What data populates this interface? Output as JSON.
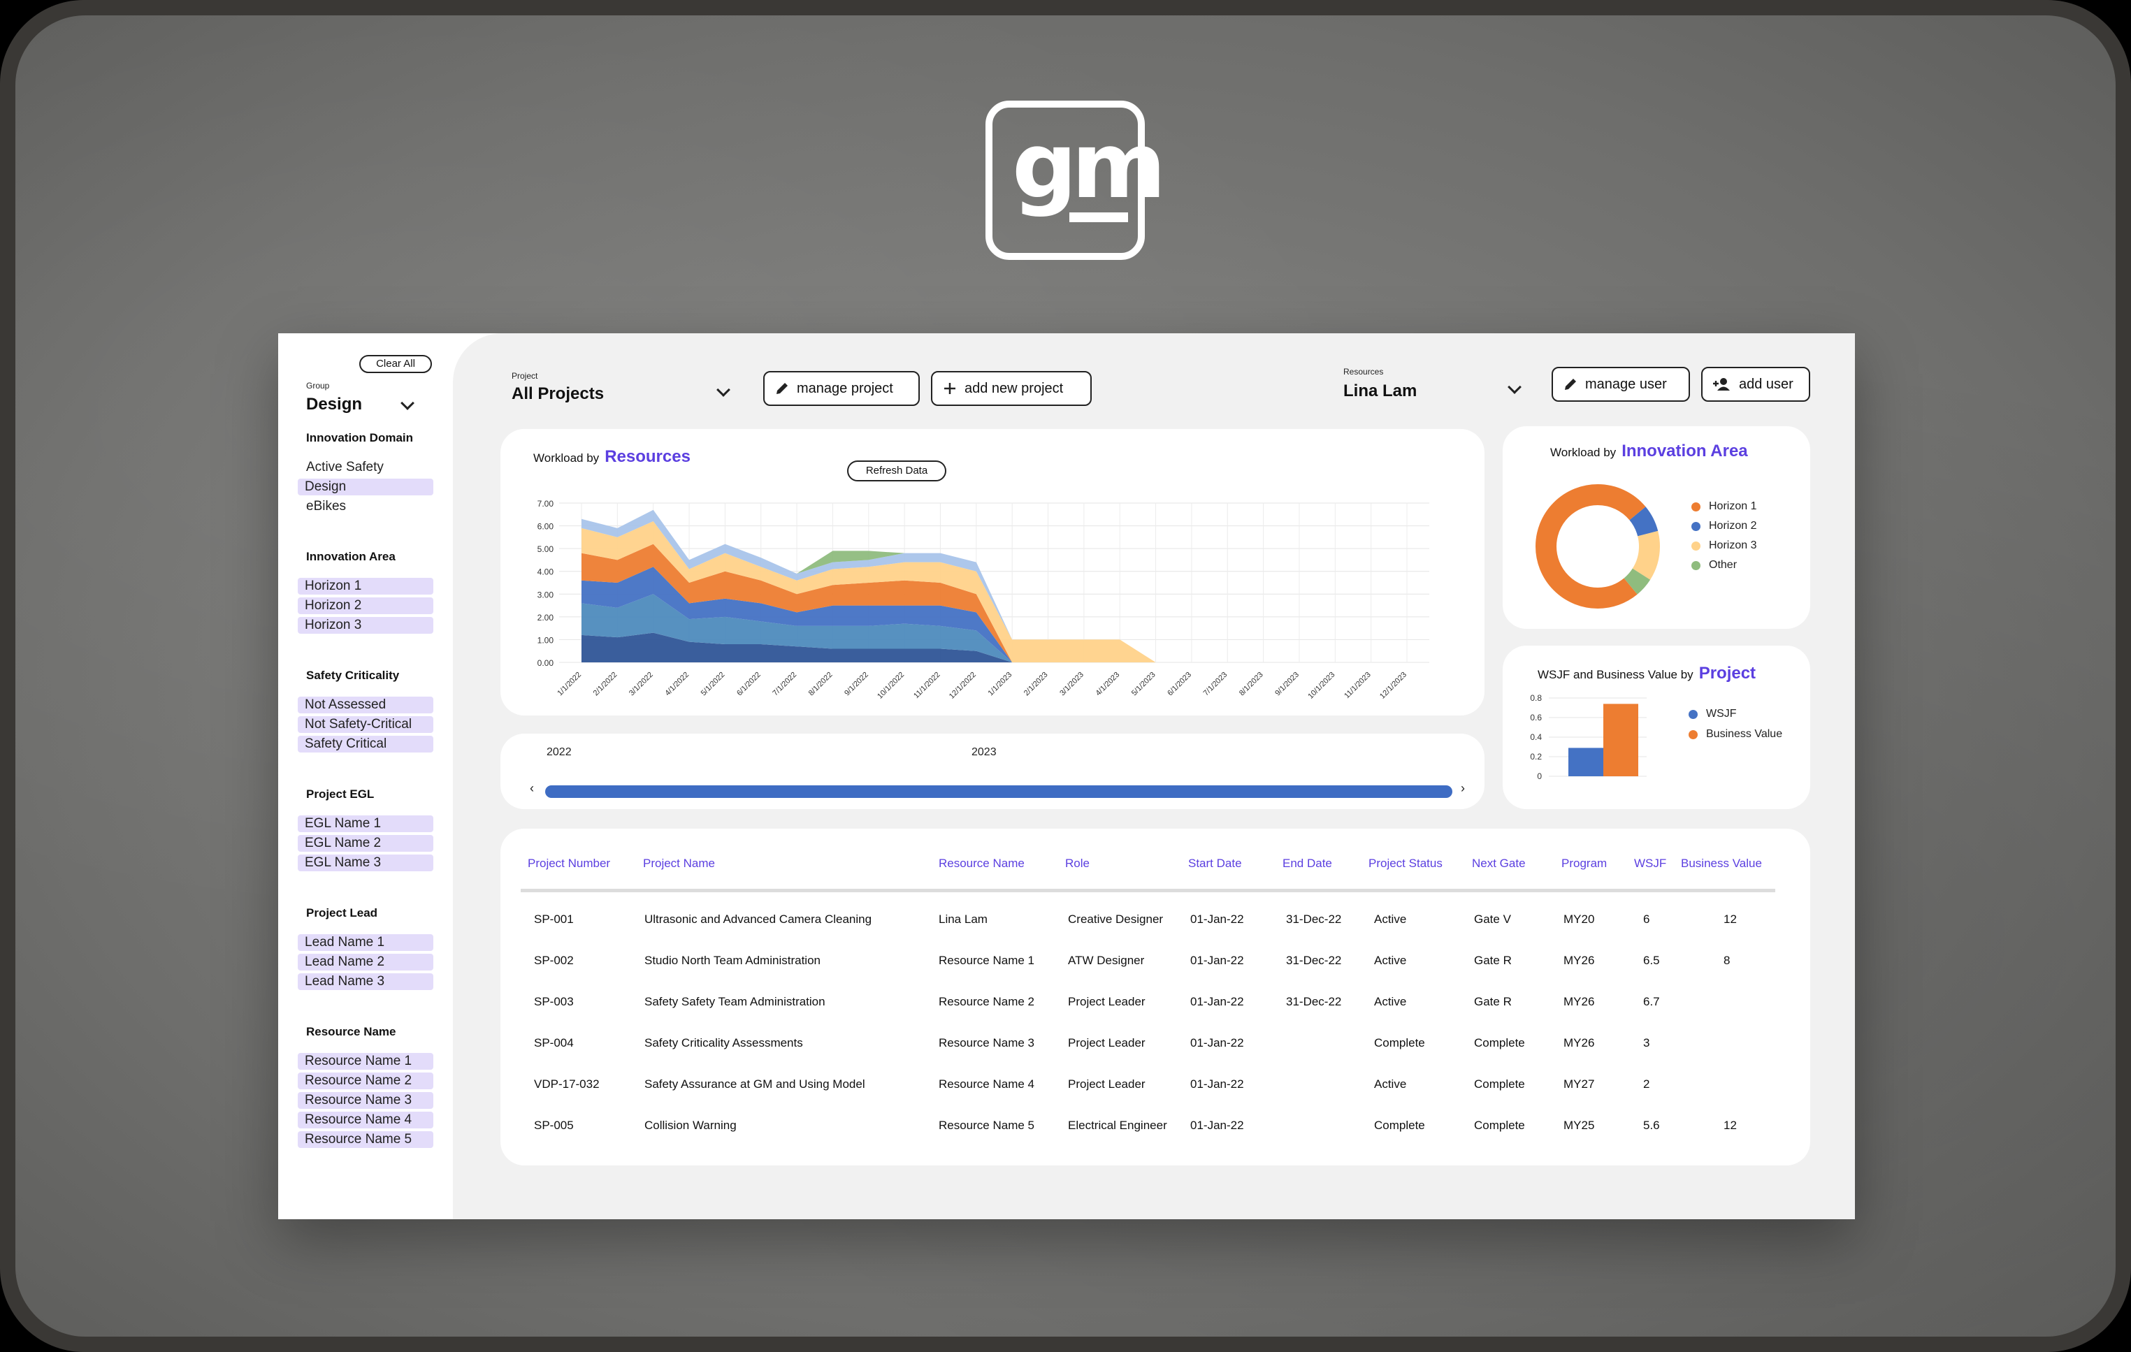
{
  "brand": {
    "logo_text": "gm"
  },
  "sidebar": {
    "clear_all": "Clear All",
    "group_label": "Group",
    "group_value": "Design",
    "sections": [
      {
        "title": "Innovation Domain",
        "items": [
          {
            "label": "Active Safety",
            "selected": false
          },
          {
            "label": "Design",
            "selected": true
          },
          {
            "label": "eBikes",
            "selected": false
          }
        ]
      },
      {
        "title": "Innovation Area",
        "items": [
          {
            "label": "Horizon 1",
            "selected": true
          },
          {
            "label": "Horizon 2",
            "selected": true
          },
          {
            "label": "Horizon 3",
            "selected": true
          }
        ]
      },
      {
        "title": "Safety Criticality",
        "items": [
          {
            "label": "Not Assessed",
            "selected": true
          },
          {
            "label": "Not Safety-Critical",
            "selected": true
          },
          {
            "label": "Safety Critical",
            "selected": true
          }
        ]
      },
      {
        "title": "Project EGL",
        "items": [
          {
            "label": "EGL Name 1",
            "selected": true
          },
          {
            "label": "EGL Name 2",
            "selected": true
          },
          {
            "label": "EGL Name 3",
            "selected": true
          }
        ]
      },
      {
        "title": "Project Lead",
        "items": [
          {
            "label": "Lead Name 1",
            "selected": true
          },
          {
            "label": "Lead Name 2",
            "selected": true
          },
          {
            "label": "Lead Name 3",
            "selected": true
          }
        ]
      },
      {
        "title": "Resource Name",
        "items": [
          {
            "label": "Resource Name 1",
            "selected": true
          },
          {
            "label": "Resource Name 2",
            "selected": true
          },
          {
            "label": "Resource Name 3",
            "selected": true
          },
          {
            "label": "Resource Name 4",
            "selected": true
          },
          {
            "label": "Resource Name 5",
            "selected": true
          }
        ]
      }
    ]
  },
  "header": {
    "project_label": "Project",
    "project_value": "All Projects",
    "manage_project": "manage project",
    "add_new_project": "add new project",
    "resources_label": "Resources",
    "resources_value": "Lina Lam",
    "manage_user": "manage user",
    "add_user": "add user"
  },
  "workload": {
    "title_prefix": "Workload by",
    "title_accent": "Resources",
    "refresh": "Refresh Data"
  },
  "timeline": {
    "years": [
      "2022",
      "2023"
    ],
    "left_arrow": "‹",
    "right_arrow": "›"
  },
  "innovation": {
    "title_prefix": "Workload by",
    "title_accent": "Innovation Area"
  },
  "wsjf": {
    "title_prefix": "WSJF and Business Value by",
    "title_accent": "Project"
  },
  "colors": {
    "accent": "#5b3fe0",
    "orange": "#ed7d31",
    "blue": "#4472c4",
    "light_orange": "#ffd28a",
    "green": "#8fbc7e",
    "sky": "#a9c4ea",
    "teal": "#4e8bbd"
  },
  "table": {
    "headers": [
      "Project Number",
      "Project Name",
      "Resource Name",
      "Role",
      "Start Date",
      "End Date",
      "Project Status",
      "Next Gate",
      "Program",
      "WSJF",
      "Business Value"
    ],
    "rows": [
      [
        "SP-001",
        "Ultrasonic and Advanced Camera Cleaning",
        "Lina Lam",
        "Creative Designer",
        "01-Jan-22",
        "31-Dec-22",
        "Active",
        "Gate V",
        "MY20",
        "6",
        "12"
      ],
      [
        "SP-002",
        "Studio North Team Administration",
        "Resource Name 1",
        "ATW Designer",
        "01-Jan-22",
        "31-Dec-22",
        "Active",
        "Gate R",
        "MY26",
        "6.5",
        "8"
      ],
      [
        "SP-003",
        "Safety Safety Team Administration",
        "Resource Name 2",
        "Project Leader",
        "01-Jan-22",
        "31-Dec-22",
        "Active",
        "Gate R",
        "MY26",
        "6.7",
        ""
      ],
      [
        "SP-004",
        "Safety Criticality Assessments",
        "Resource Name 3",
        "Project Leader",
        "01-Jan-22",
        "",
        "Complete",
        "Complete",
        "MY26",
        "3",
        ""
      ],
      [
        "VDP-17-032",
        "Safety Assurance at GM and Using Model",
        "Resource Name 4",
        "Project Leader",
        "01-Jan-22",
        "",
        "Active",
        "Complete",
        "MY27",
        "2",
        ""
      ],
      [
        "SP-005",
        "Collision Warning",
        "Resource Name 5",
        "Electrical Engineer",
        "01-Jan-22",
        "",
        "Complete",
        "Complete",
        "MY25",
        "5.6",
        "12"
      ]
    ]
  },
  "chart_data": [
    {
      "type": "area",
      "title": "Workload by Resources",
      "x": [
        "1/1/2022",
        "2/1/2022",
        "3/1/2022",
        "4/1/2022",
        "5/1/2022",
        "6/1/2022",
        "7/1/2022",
        "8/1/2022",
        "9/1/2022",
        "10/1/2022",
        "11/1/2022",
        "12/1/2022",
        "1/1/2023",
        "2/1/2023",
        "3/1/2023",
        "4/1/2023",
        "5/1/2023",
        "6/1/2023",
        "7/1/2023",
        "8/1/2023",
        "9/1/2023",
        "10/1/2023",
        "11/1/2023",
        "12/1/2023"
      ],
      "ylim": [
        0,
        7
      ],
      "yticks": [
        "0.00",
        "1.00",
        "2.00",
        "3.00",
        "4.00",
        "5.00",
        "6.00",
        "7.00"
      ],
      "grid": true,
      "stacked": true,
      "series": [
        {
          "color": "#2f5597",
          "values": [
            1.2,
            1.1,
            1.3,
            0.9,
            0.8,
            0.8,
            0.7,
            0.6,
            0.6,
            0.6,
            0.6,
            0.5,
            0,
            0,
            0,
            0,
            0,
            0,
            0,
            0,
            0,
            0,
            0,
            0
          ]
        },
        {
          "color": "#4e8bbd",
          "values": [
            1.4,
            1.3,
            1.7,
            1.0,
            1.2,
            1.0,
            0.9,
            1.0,
            1.0,
            1.1,
            1.0,
            0.9,
            0,
            0,
            0,
            0,
            0,
            0,
            0,
            0,
            0,
            0,
            0,
            0
          ]
        },
        {
          "color": "#4472c4",
          "values": [
            1.0,
            1.1,
            1.2,
            0.7,
            0.8,
            0.8,
            0.6,
            0.9,
            0.9,
            0.8,
            0.9,
            0.8,
            0,
            0,
            0,
            0,
            0,
            0,
            0,
            0,
            0,
            0,
            0,
            0
          ]
        },
        {
          "color": "#ed7d31",
          "values": [
            1.2,
            1.0,
            1.0,
            0.9,
            1.2,
            1.0,
            0.8,
            0.9,
            1.0,
            1.1,
            1.0,
            0.8,
            0,
            0,
            0,
            0,
            0,
            0,
            0,
            0,
            0,
            0,
            0,
            0
          ]
        },
        {
          "color": "#ffd28a",
          "values": [
            1.1,
            1.0,
            1.0,
            0.6,
            0.8,
            0.6,
            0.6,
            0.7,
            0.7,
            0.8,
            0.9,
            1.0,
            1.0,
            1.0,
            1.0,
            1.0,
            0,
            0,
            0,
            0,
            0,
            0,
            0,
            0
          ]
        },
        {
          "color": "#a9c4ea",
          "values": [
            0.4,
            0.4,
            0.5,
            0.4,
            0.4,
            0.4,
            0.3,
            0.3,
            0.3,
            0.4,
            0.4,
            0.4,
            0,
            0,
            0,
            0,
            0,
            0,
            0,
            0,
            0,
            0,
            0,
            0
          ]
        },
        {
          "color": "#8fbc7e",
          "values": [
            0,
            0,
            0,
            0,
            0,
            0,
            0,
            0.5,
            0.4,
            0,
            0,
            0,
            0,
            0,
            0,
            0,
            0,
            0,
            0,
            0,
            0,
            0,
            0,
            0
          ]
        }
      ]
    },
    {
      "type": "pie",
      "title": "Workload by Innovation Area",
      "donut": true,
      "legend": "right",
      "labels": [
        "Horizon 1",
        "Horizon 2",
        "Horizon 3",
        "Other"
      ],
      "values": [
        75,
        7,
        13,
        5
      ],
      "colors": [
        "#ed7d31",
        "#4472c4",
        "#ffd28a",
        "#8fbc7e"
      ]
    },
    {
      "type": "bar",
      "title": "WSJF and Business Value by Project",
      "legend": "right",
      "categories": [
        ""
      ],
      "ylim": [
        0,
        0.8
      ],
      "yticks": [
        "0",
        "0.2",
        "0.4",
        "0.6",
        "0.8"
      ],
      "series": [
        {
          "name": "WSJF",
          "color": "#4472c4",
          "values": [
            0.29
          ]
        },
        {
          "name": "Business Value",
          "color": "#ed7d31",
          "values": [
            0.74
          ]
        }
      ]
    }
  ]
}
